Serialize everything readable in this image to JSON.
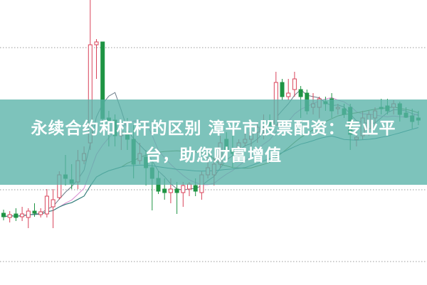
{
  "banner": {
    "title_line1": "永续合约和杠杆的区别 漳平市股票配资：专业平",
    "title_line2": "台，助您财富增值",
    "color": "#58b2a8"
  },
  "chart_data": {
    "type": "candlestick",
    "title": "",
    "xlabel": "",
    "ylabel": "",
    "ylim": [
      0,
      401
    ],
    "grid": "horizontal-dotted",
    "grid_levels": [
      334,
      134,
      33
    ],
    "colors": {
      "up": "#d9435a",
      "down": "#1f9444",
      "ma": [
        "#6a7a86",
        "#d98bd0",
        "#5f7f3a",
        "#2f7f86"
      ]
    },
    "moving_average_periods": [
      5,
      10,
      20,
      40
    ],
    "candles": [
      [
        101,
        106,
        91,
        96
      ],
      [
        95,
        104,
        88,
        99
      ],
      [
        100,
        108,
        90,
        95
      ],
      [
        96,
        110,
        90,
        100
      ],
      [
        95,
        108,
        80,
        104
      ],
      [
        104,
        115,
        96,
        101
      ],
      [
        99,
        108,
        95,
        103
      ],
      [
        100,
        135,
        95,
        125
      ],
      [
        110,
        135,
        80,
        120
      ],
      [
        123,
        160,
        120,
        155
      ],
      [
        155,
        183,
        140,
        150
      ],
      [
        148,
        170,
        135,
        143
      ],
      [
        145,
        190,
        135,
        175
      ],
      [
        175,
        195,
        170,
        185
      ],
      [
        200,
        401,
        190,
        338
      ],
      [
        338,
        346,
        290,
        342
      ],
      [
        342,
        342,
        225,
        234
      ],
      [
        235,
        245,
        195,
        230
      ],
      [
        232,
        240,
        195,
        210
      ],
      [
        210,
        225,
        190,
        215
      ],
      [
        215,
        235,
        190,
        205
      ],
      [
        205,
        225,
        150,
        170
      ],
      [
        175,
        200,
        170,
        185
      ],
      [
        180,
        190,
        140,
        165
      ],
      [
        165,
        175,
        105,
        150
      ],
      [
        150,
        160,
        128,
        132
      ],
      [
        135,
        150,
        120,
        130
      ],
      [
        130,
        150,
        115,
        135
      ],
      [
        135,
        145,
        100,
        130
      ],
      [
        130,
        145,
        110,
        140
      ],
      [
        135,
        145,
        125,
        142
      ],
      [
        140,
        150,
        125,
        132
      ],
      [
        130,
        160,
        120,
        155
      ],
      [
        155,
        180,
        150,
        165
      ],
      [
        155,
        180,
        140,
        170
      ],
      [
        170,
        210,
        165,
        200
      ],
      [
        205,
        215,
        185,
        190
      ],
      [
        190,
        210,
        165,
        185
      ],
      [
        185,
        205,
        175,
        200
      ],
      [
        200,
        215,
        195,
        205
      ],
      [
        205,
        225,
        195,
        215
      ],
      [
        215,
        230,
        200,
        222
      ],
      [
        222,
        240,
        205,
        230
      ],
      [
        230,
        240,
        215,
        225
      ],
      [
        225,
        300,
        225,
        285
      ],
      [
        285,
        290,
        260,
        265
      ],
      [
        265,
        290,
        260,
        270
      ],
      [
        275,
        300,
        265,
        290
      ],
      [
        275,
        280,
        235,
        265
      ],
      [
        270,
        275,
        240,
        245
      ],
      [
        250,
        270,
        240,
        255
      ],
      [
        250,
        265,
        235,
        262
      ],
      [
        258,
        265,
        245,
        255
      ],
      [
        262,
        270,
        235,
        245
      ],
      [
        248,
        255,
        240,
        250
      ],
      [
        248,
        255,
        235,
        240
      ],
      [
        250,
        255,
        190,
        212
      ],
      [
        205,
        215,
        195,
        208
      ],
      [
        210,
        245,
        205,
        235
      ],
      [
        220,
        245,
        210,
        240
      ],
      [
        235,
        250,
        220,
        245
      ],
      [
        250,
        262,
        240,
        248
      ],
      [
        252,
        262,
        240,
        245
      ],
      [
        250,
        260,
        240,
        255
      ],
      [
        255,
        258,
        230,
        240
      ],
      [
        242,
        250,
        235,
        236
      ],
      [
        238,
        248,
        220,
        230
      ],
      [
        235,
        245,
        225,
        232
      ]
    ]
  }
}
